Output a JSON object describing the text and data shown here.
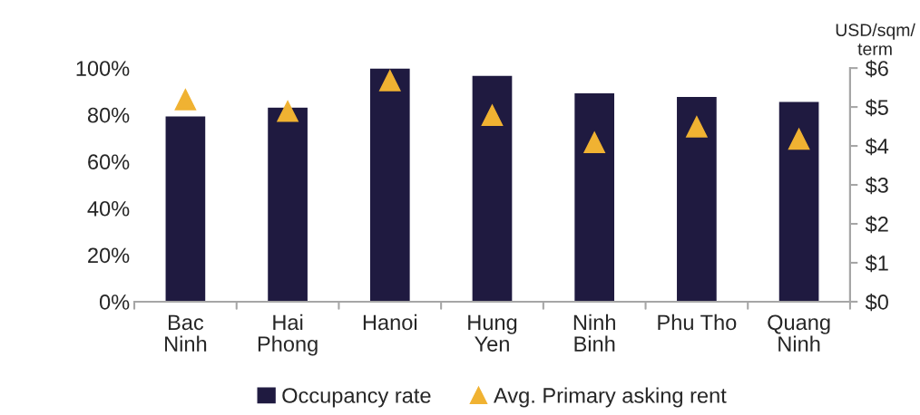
{
  "chart_data": {
    "type": "bar",
    "categories": [
      "Bac\nNinh",
      "Hai\nPhong",
      "Hanoi",
      "Hung\nYen",
      "Ninh\nBinh",
      "Phu Tho",
      "Quang\nNinh"
    ],
    "series": [
      {
        "name": "Occupancy rate",
        "color": "#1f1a40",
        "values": [
          79.6,
          83.3,
          100,
          96.9,
          89.5,
          87.9,
          85.8
        ]
      },
      {
        "name": "Avg. Primary asking rent",
        "type": "scatter",
        "axis": "y2",
        "marker": "triangle",
        "color": "#f0b232",
        "values": [
          5.19,
          4.89,
          5.68,
          4.79,
          4.09,
          4.49,
          4.18
        ]
      }
    ],
    "y2label": "USD/sqm/\nterm",
    "ylim": [
      0,
      100
    ],
    "yticks": [
      {
        "value": 0,
        "label": "0%"
      },
      {
        "value": 20,
        "label": "20%"
      },
      {
        "value": 40,
        "label": "40%"
      },
      {
        "value": 60,
        "label": "60%"
      },
      {
        "value": 80,
        "label": "80%"
      },
      {
        "value": 100,
        "label": "100%"
      }
    ],
    "y2lim": [
      0,
      6
    ],
    "y2ticks": [
      {
        "value": 0,
        "label": "$0"
      },
      {
        "value": 1,
        "label": "$1"
      },
      {
        "value": 2,
        "label": "$2"
      },
      {
        "value": 3,
        "label": "$3"
      },
      {
        "value": 4,
        "label": "$4"
      },
      {
        "value": 5,
        "label": "$5"
      },
      {
        "value": 6,
        "label": "$6"
      }
    ],
    "legend": "bottom",
    "grid": false
  }
}
